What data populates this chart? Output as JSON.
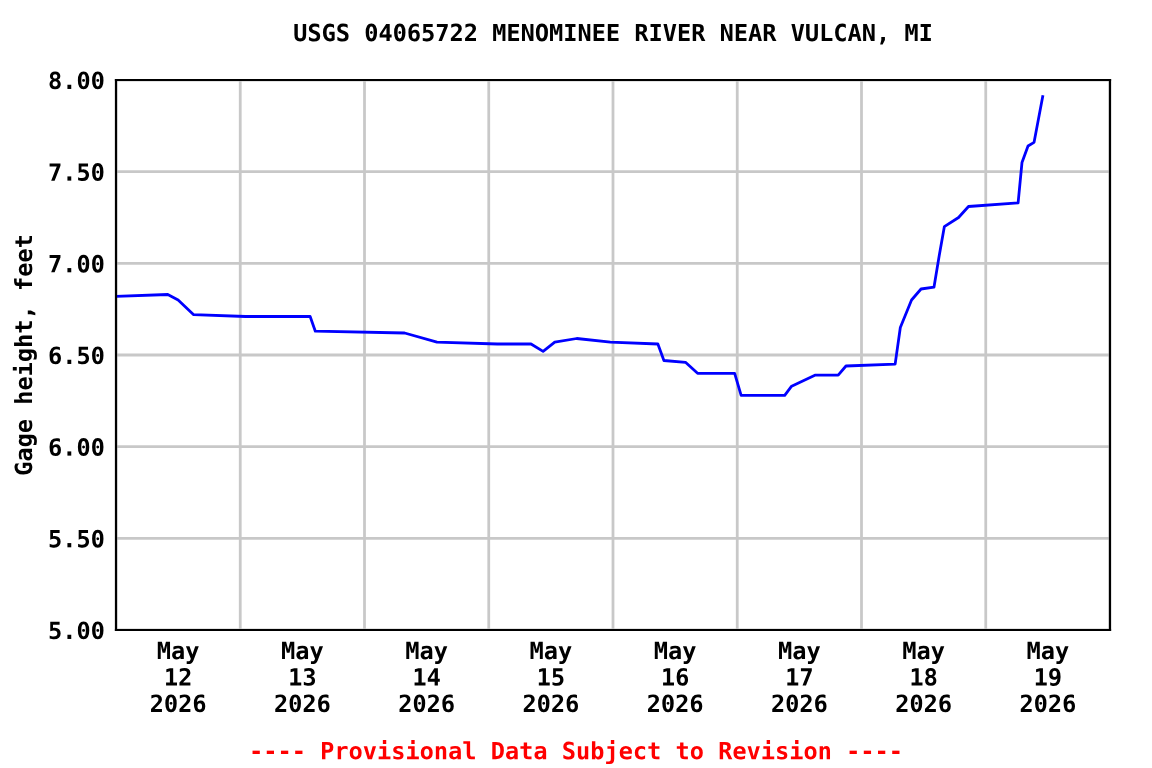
{
  "chart_data": {
    "type": "line",
    "title": "USGS 04065722 MENOMINEE RIVER NEAR VULCAN, MI",
    "ylabel": "Gage height, feet",
    "x": [
      "2026-05-12T00:00",
      "2026-05-12T10:00",
      "2026-05-12T12:00",
      "2026-05-12T15:00",
      "2026-05-13T01:00",
      "2026-05-13T13:30",
      "2026-05-13T14:30",
      "2026-05-14T07:45",
      "2026-05-14T14:00",
      "2026-05-15T01:40",
      "2026-05-15T08:10",
      "2026-05-15T10:30",
      "2026-05-15T12:45",
      "2026-05-15T17:00",
      "2026-05-15T23:30",
      "2026-05-16T08:40",
      "2026-05-16T09:50",
      "2026-05-16T14:00",
      "2026-05-16T16:20",
      "2026-05-16T23:30",
      "2026-05-17T00:45",
      "2026-05-17T09:10",
      "2026-05-17T10:30",
      "2026-05-17T15:00",
      "2026-05-17T19:30",
      "2026-05-17T21:00",
      "2026-05-18T06:30",
      "2026-05-18T07:30",
      "2026-05-18T09:40",
      "2026-05-18T11:30",
      "2026-05-18T14:00",
      "2026-05-18T15:00",
      "2026-05-18T16:00",
      "2026-05-18T18:45",
      "2026-05-18T20:40",
      "2026-05-19T06:15",
      "2026-05-19T07:00",
      "2026-05-19T08:10",
      "2026-05-19T09:20",
      "2026-05-19T11:00"
    ],
    "series": [
      {
        "color": "#0000ff",
        "values": [
          6.82,
          6.83,
          6.8,
          6.72,
          6.71,
          6.71,
          6.63,
          6.62,
          6.57,
          6.56,
          6.56,
          6.52,
          6.57,
          6.59,
          6.57,
          6.56,
          6.47,
          6.46,
          6.4,
          6.4,
          6.28,
          6.28,
          6.33,
          6.39,
          6.39,
          6.44,
          6.45,
          6.65,
          6.8,
          6.86,
          6.87,
          7.04,
          7.2,
          7.25,
          7.31,
          7.33,
          7.55,
          7.64,
          7.66,
          7.91
        ]
      }
    ],
    "xlim": [
      "2026-05-12",
      "2026-05-20"
    ],
    "xticks": [
      {
        "value": "2026-05-12",
        "label": null
      },
      {
        "value": "2026-05-12T12:00",
        "label": "May\n12\n2026"
      },
      {
        "value": "2026-05-13",
        "label": null
      },
      {
        "value": "2026-05-13T12:00",
        "label": "May\n13\n2026"
      },
      {
        "value": "2026-05-14",
        "label": null
      },
      {
        "value": "2026-05-14T12:00",
        "label": "May\n14\n2026"
      },
      {
        "value": "2026-05-15",
        "label": null
      },
      {
        "value": "2026-05-15T12:00",
        "label": "May\n15\n2026"
      },
      {
        "value": "2026-05-16",
        "label": null
      },
      {
        "value": "2026-05-16T12:00",
        "label": "May\n16\n2026"
      },
      {
        "value": "2026-05-17",
        "label": null
      },
      {
        "value": "2026-05-17T12:00",
        "label": "May\n17\n2026"
      },
      {
        "value": "2026-05-18",
        "label": null
      },
      {
        "value": "2026-05-18T12:00",
        "label": "May\n18\n2026"
      },
      {
        "value": "2026-05-19",
        "label": null
      },
      {
        "value": "2026-05-19T12:00",
        "label": "May\n19\n2026"
      },
      {
        "value": "2026-05-20",
        "label": null
      }
    ],
    "ylim": [
      5.0,
      8.0
    ],
    "yticks": [
      {
        "value": 5.0,
        "label": "5.00"
      },
      {
        "value": 5.5,
        "label": "5.50"
      },
      {
        "value": 6.0,
        "label": "6.00"
      },
      {
        "value": 6.5,
        "label": "6.50"
      },
      {
        "value": 7.0,
        "label": "7.00"
      },
      {
        "value": 7.5,
        "label": "7.50"
      },
      {
        "value": 8.0,
        "label": "8.00"
      }
    ],
    "grid": true,
    "legend": false,
    "annotations": [
      "---- Provisional Data Subject to Revision ----"
    ]
  }
}
